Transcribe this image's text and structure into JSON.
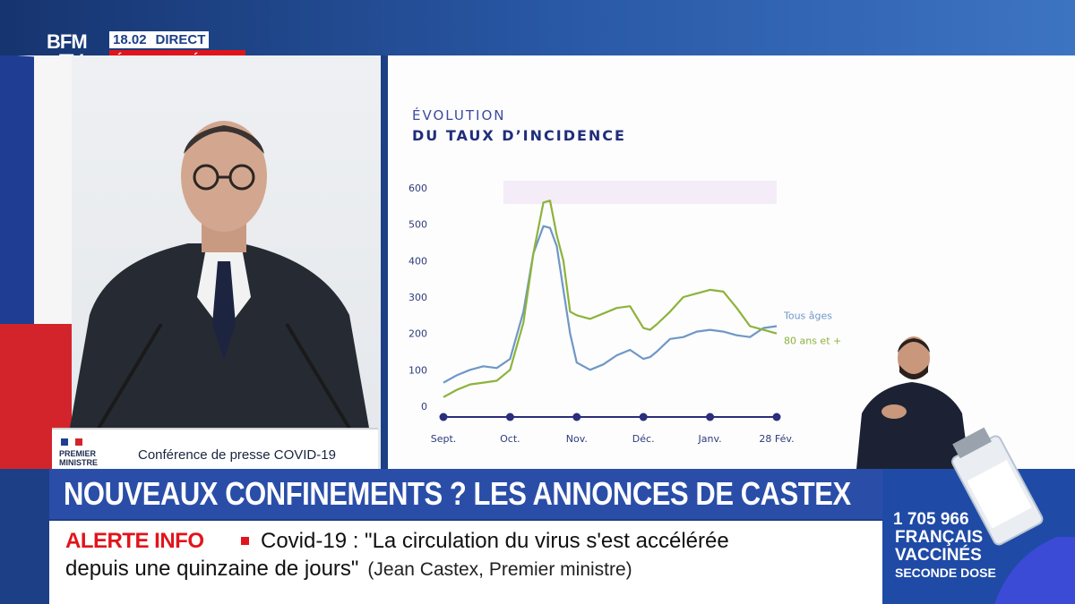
{
  "header": {
    "logo_line1": "BFM",
    "logo_line2": "TV.",
    "time": "18.02",
    "live": "DIRECT",
    "special_edition": "ÉDITION SPÉCIALE"
  },
  "video": {
    "podium_org_line1": "PREMIER",
    "podium_org_line2": "MINISTRE",
    "podium_event": "Conférence de presse COVID-19"
  },
  "chart_panel": {
    "title_line1": "ÉVOLUTION",
    "title_line2": "DU TAUX D’INCIDENCE"
  },
  "chart_data": {
    "type": "line",
    "title": "ÉVOLUTION DU TAUX D’INCIDENCE",
    "xlabel": "",
    "ylabel": "",
    "x_tick_labels": [
      "Sept.",
      "Oct.",
      "Nov.",
      "Déc.",
      "Janv.",
      "28 Fév."
    ],
    "x_tick_positions": [
      0,
      1,
      2,
      3,
      4,
      5
    ],
    "y_ticks": [
      0,
      100,
      200,
      300,
      400,
      500,
      600
    ],
    "ylim": [
      0,
      600
    ],
    "xlim": [
      0,
      5
    ],
    "grid": false,
    "legend": "inline-right",
    "series": [
      {
        "name": "Tous âges",
        "color": "#6f97c6",
        "x": [
          0,
          0.2,
          0.4,
          0.6,
          0.8,
          1.0,
          1.2,
          1.35,
          1.5,
          1.6,
          1.7,
          1.8,
          1.9,
          2.0,
          2.2,
          2.4,
          2.6,
          2.8,
          3.0,
          3.1,
          3.2,
          3.4,
          3.6,
          3.8,
          4.0,
          4.2,
          4.4,
          4.6,
          4.8,
          5.0
        ],
        "y": [
          65,
          85,
          100,
          110,
          105,
          130,
          260,
          420,
          495,
          490,
          440,
          320,
          200,
          120,
          100,
          115,
          140,
          155,
          130,
          135,
          150,
          185,
          190,
          205,
          210,
          205,
          195,
          190,
          215,
          220
        ]
      },
      {
        "name": "80 ans et +",
        "color": "#8db33b",
        "x": [
          0,
          0.2,
          0.4,
          0.6,
          0.8,
          1.0,
          1.2,
          1.35,
          1.5,
          1.6,
          1.7,
          1.8,
          1.9,
          2.0,
          2.2,
          2.4,
          2.6,
          2.8,
          3.0,
          3.1,
          3.2,
          3.4,
          3.6,
          3.8,
          4.0,
          4.2,
          4.4,
          4.6,
          4.8,
          5.0
        ],
        "y": [
          25,
          45,
          60,
          65,
          70,
          100,
          230,
          420,
          560,
          565,
          470,
          400,
          260,
          250,
          240,
          255,
          270,
          275,
          215,
          210,
          225,
          260,
          300,
          310,
          320,
          315,
          270,
          220,
          210,
          200
        ]
      }
    ]
  },
  "headline": "NOUVEAUX CONFINEMENTS ? LES ANNONCES DE CASTEX",
  "alert": {
    "label": "ALERTE INFO",
    "line1": "Covid-19 : \"La circulation du virus s'est accélérée",
    "line2": "depuis une quinzaine de jours\"",
    "source": "(Jean Castex, Premier ministre)"
  },
  "vaccine": {
    "count": "1 705 966",
    "line2": "FRANÇAIS",
    "line3": "VACCINÉS",
    "line4": "SECONDE DOSE"
  }
}
